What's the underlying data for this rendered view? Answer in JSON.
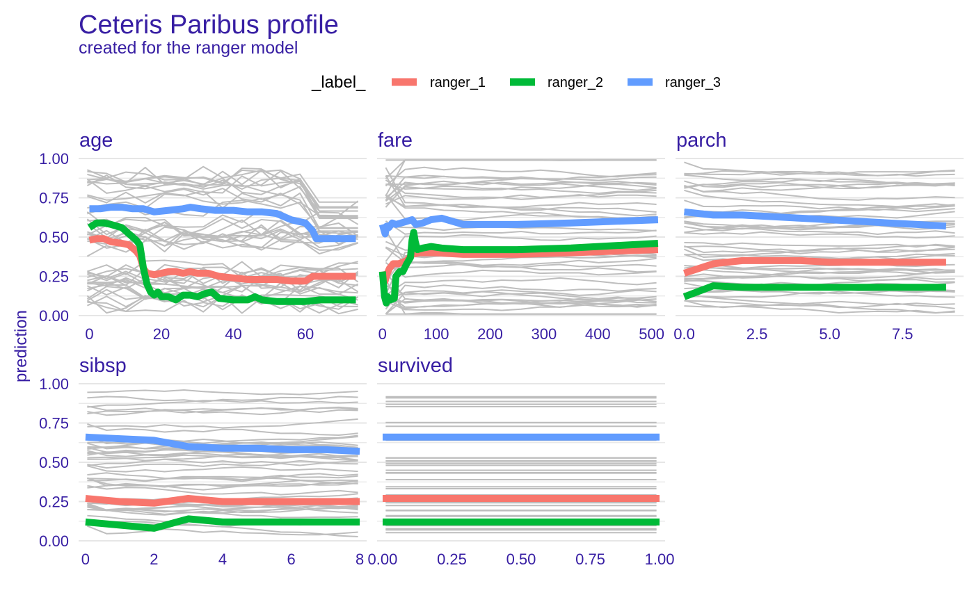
{
  "chart_data": {
    "type": "line",
    "title": "Ceteris Paribus profile",
    "subtitle": "created for the ranger model",
    "ylabel": "prediction",
    "legend_title": "_label_",
    "legend_position": "top",
    "grid": true,
    "ylim": [
      0,
      1
    ],
    "yticks": [
      "0.00",
      "0.25",
      "0.50",
      "0.75",
      "1.00"
    ],
    "series": [
      {
        "name": "ranger_1",
        "color": "#f8766d"
      },
      {
        "name": "ranger_2",
        "color": "#00ba38"
      },
      {
        "name": "ranger_3",
        "color": "#619cff"
      }
    ],
    "background_line_color": "#bebebe",
    "panels": [
      {
        "name": "age",
        "xlim": [
          -3,
          77
        ],
        "xticks": [
          0,
          20,
          40,
          60
        ],
        "xtick_labels": [
          "0",
          "20",
          "40",
          "60"
        ],
        "lines": {
          "ranger_1": [
            [
              0,
              0.48
            ],
            [
              2,
              0.49
            ],
            [
              4,
              0.49
            ],
            [
              6,
              0.47
            ],
            [
              9,
              0.46
            ],
            [
              11,
              0.45
            ],
            [
              13,
              0.41
            ],
            [
              14,
              0.38
            ],
            [
              15,
              0.3
            ],
            [
              16,
              0.27
            ],
            [
              18,
              0.26
            ],
            [
              20,
              0.27
            ],
            [
              22,
              0.28
            ],
            [
              24,
              0.28
            ],
            [
              26,
              0.27
            ],
            [
              28,
              0.28
            ],
            [
              30,
              0.27
            ],
            [
              33,
              0.27
            ],
            [
              36,
              0.25
            ],
            [
              40,
              0.24
            ],
            [
              44,
              0.23
            ],
            [
              48,
              0.23
            ],
            [
              52,
              0.23
            ],
            [
              56,
              0.22
            ],
            [
              60,
              0.22
            ],
            [
              62,
              0.25
            ],
            [
              66,
              0.25
            ],
            [
              74,
              0.25
            ]
          ],
          "ranger_2": [
            [
              0,
              0.56
            ],
            [
              2,
              0.59
            ],
            [
              4,
              0.59
            ],
            [
              6,
              0.58
            ],
            [
              9,
              0.56
            ],
            [
              11,
              0.52
            ],
            [
              13,
              0.48
            ],
            [
              14,
              0.45
            ],
            [
              15,
              0.3
            ],
            [
              16,
              0.2
            ],
            [
              17,
              0.15
            ],
            [
              18,
              0.13
            ],
            [
              19,
              0.15
            ],
            [
              20,
              0.12
            ],
            [
              22,
              0.12
            ],
            [
              24,
              0.1
            ],
            [
              26,
              0.13
            ],
            [
              28,
              0.13
            ],
            [
              30,
              0.12
            ],
            [
              32,
              0.14
            ],
            [
              34,
              0.15
            ],
            [
              36,
              0.11
            ],
            [
              40,
              0.1
            ],
            [
              44,
              0.1
            ],
            [
              46,
              0.12
            ],
            [
              48,
              0.1
            ],
            [
              52,
              0.09
            ],
            [
              56,
              0.09
            ],
            [
              60,
              0.09
            ],
            [
              64,
              0.1
            ],
            [
              74,
              0.1
            ]
          ],
          "ranger_3": [
            [
              0,
              0.68
            ],
            [
              3,
              0.68
            ],
            [
              6,
              0.69
            ],
            [
              9,
              0.69
            ],
            [
              12,
              0.68
            ],
            [
              15,
              0.68
            ],
            [
              18,
              0.66
            ],
            [
              22,
              0.67
            ],
            [
              26,
              0.68
            ],
            [
              28,
              0.69
            ],
            [
              31,
              0.68
            ],
            [
              35,
              0.67
            ],
            [
              40,
              0.67
            ],
            [
              44,
              0.66
            ],
            [
              48,
              0.66
            ],
            [
              52,
              0.65
            ],
            [
              54,
              0.63
            ],
            [
              56,
              0.61
            ],
            [
              60,
              0.59
            ],
            [
              62,
              0.54
            ],
            [
              63,
              0.49
            ],
            [
              66,
              0.49
            ],
            [
              74,
              0.49
            ]
          ]
        }
      },
      {
        "name": "fare",
        "xlim": [
          -10,
          525
        ],
        "xticks": [
          0,
          100,
          200,
          300,
          400,
          500
        ],
        "xtick_labels": [
          "0",
          "100",
          "200",
          "300",
          "400",
          "500"
        ],
        "lines": {
          "ranger_1": [
            [
              0,
              0.28
            ],
            [
              5,
              0.22
            ],
            [
              8,
              0.26
            ],
            [
              13,
              0.3
            ],
            [
              20,
              0.33
            ],
            [
              30,
              0.33
            ],
            [
              45,
              0.35
            ],
            [
              55,
              0.39
            ],
            [
              70,
              0.4
            ],
            [
              100,
              0.4
            ],
            [
              150,
              0.39
            ],
            [
              250,
              0.39
            ],
            [
              350,
              0.4
            ],
            [
              512,
              0.42
            ]
          ],
          "ranger_2": [
            [
              0,
              0.28
            ],
            [
              4,
              0.12
            ],
            [
              7,
              0.08
            ],
            [
              10,
              0.12
            ],
            [
              15,
              0.1
            ],
            [
              22,
              0.11
            ],
            [
              25,
              0.25
            ],
            [
              32,
              0.28
            ],
            [
              38,
              0.28
            ],
            [
              45,
              0.33
            ],
            [
              52,
              0.37
            ],
            [
              55,
              0.48
            ],
            [
              58,
              0.53
            ],
            [
              61,
              0.47
            ],
            [
              65,
              0.42
            ],
            [
              75,
              0.43
            ],
            [
              90,
              0.44
            ],
            [
              110,
              0.43
            ],
            [
              150,
              0.42
            ],
            [
              250,
              0.42
            ],
            [
              350,
              0.43
            ],
            [
              512,
              0.46
            ]
          ],
          "ranger_3": [
            [
              0,
              0.58
            ],
            [
              5,
              0.52
            ],
            [
              8,
              0.57
            ],
            [
              12,
              0.56
            ],
            [
              18,
              0.59
            ],
            [
              25,
              0.58
            ],
            [
              35,
              0.59
            ],
            [
              45,
              0.6
            ],
            [
              55,
              0.61
            ],
            [
              62,
              0.58
            ],
            [
              75,
              0.59
            ],
            [
              90,
              0.61
            ],
            [
              110,
              0.62
            ],
            [
              150,
              0.58
            ],
            [
              250,
              0.58
            ],
            [
              350,
              0.59
            ],
            [
              512,
              0.61
            ]
          ]
        }
      },
      {
        "name": "parch",
        "xlim": [
          -0.3,
          9.6
        ],
        "xticks": [
          0,
          2.5,
          5,
          7.5
        ],
        "xtick_labels": [
          "0.0",
          "2.5",
          "5.0",
          "7.5"
        ],
        "lines": {
          "ranger_1": [
            [
              0,
              0.27
            ],
            [
              1,
              0.33
            ],
            [
              2,
              0.35
            ],
            [
              3,
              0.35
            ],
            [
              4,
              0.35
            ],
            [
              5,
              0.34
            ],
            [
              6,
              0.34
            ],
            [
              7,
              0.34
            ],
            [
              8,
              0.34
            ],
            [
              9,
              0.34
            ]
          ],
          "ranger_2": [
            [
              0,
              0.12
            ],
            [
              1,
              0.19
            ],
            [
              2,
              0.18
            ],
            [
              3,
              0.18
            ],
            [
              4,
              0.18
            ],
            [
              5,
              0.18
            ],
            [
              6,
              0.18
            ],
            [
              7,
              0.18
            ],
            [
              8,
              0.18
            ],
            [
              9,
              0.18
            ]
          ],
          "ranger_3": [
            [
              0,
              0.66
            ],
            [
              1,
              0.64
            ],
            [
              2,
              0.64
            ],
            [
              3,
              0.63
            ],
            [
              4,
              0.62
            ],
            [
              5,
              0.61
            ],
            [
              6,
              0.6
            ],
            [
              7,
              0.59
            ],
            [
              8,
              0.58
            ],
            [
              9,
              0.57
            ]
          ]
        }
      },
      {
        "name": "sibsp",
        "xlim": [
          -0.2,
          8.2
        ],
        "xticks": [
          0,
          2,
          4,
          6,
          8
        ],
        "xtick_labels": [
          "0",
          "2",
          "4",
          "6",
          "8"
        ],
        "lines": {
          "ranger_1": [
            [
              0,
              0.27
            ],
            [
              1,
              0.25
            ],
            [
              2,
              0.24
            ],
            [
              3,
              0.27
            ],
            [
              4,
              0.25
            ],
            [
              5,
              0.25
            ],
            [
              6,
              0.25
            ],
            [
              7,
              0.25
            ],
            [
              8,
              0.25
            ]
          ],
          "ranger_2": [
            [
              0,
              0.12
            ],
            [
              1,
              0.1
            ],
            [
              2,
              0.08
            ],
            [
              3,
              0.14
            ],
            [
              4,
              0.12
            ],
            [
              5,
              0.12
            ],
            [
              6,
              0.12
            ],
            [
              7,
              0.12
            ],
            [
              8,
              0.12
            ]
          ],
          "ranger_3": [
            [
              0,
              0.66
            ],
            [
              1,
              0.65
            ],
            [
              2,
              0.64
            ],
            [
              3,
              0.6
            ],
            [
              4,
              0.59
            ],
            [
              5,
              0.59
            ],
            [
              6,
              0.58
            ],
            [
              7,
              0.58
            ],
            [
              8,
              0.57
            ]
          ]
        }
      },
      {
        "name": "survived",
        "xlim": [
          -0.02,
          1.02
        ],
        "xticks": [
          0,
          0.25,
          0.5,
          0.75,
          1
        ],
        "xtick_labels": [
          "0.00",
          "0.25",
          "0.50",
          "0.75",
          "1.00"
        ],
        "lines": {
          "ranger_1": [
            [
              0,
              0.27
            ],
            [
              1,
              0.27
            ]
          ],
          "ranger_2": [
            [
              0,
              0.12
            ],
            [
              1,
              0.12
            ]
          ],
          "ranger_3": [
            [
              0,
              0.66
            ],
            [
              1,
              0.66
            ]
          ]
        }
      }
    ]
  }
}
